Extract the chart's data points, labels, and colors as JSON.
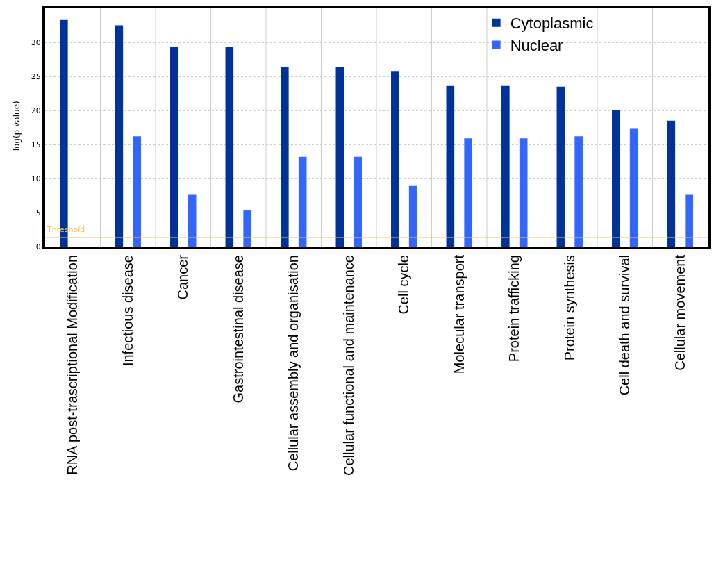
{
  "chart_data": {
    "type": "bar",
    "ylabel": "-log(p-value)",
    "categories": [
      "RNA post-trascriptional Modification",
      "Infectious disease",
      "Cancer",
      "Gastrointestinal disease",
      "Cellular assembly and organisation",
      "Cellular functional and maintenance",
      "Cell cycle",
      "Molecular transport",
      "Protein trafficking",
      "Protein synthesis",
      "Cell death and survival",
      "Cellular movement"
    ],
    "series": [
      {
        "name": "Cytoplasmic",
        "color": "#003399",
        "values": [
          33.3,
          32.5,
          29.4,
          29.4,
          26.4,
          26.4,
          25.8,
          23.6,
          23.6,
          23.5,
          20.1,
          18.5
        ]
      },
      {
        "name": "Nuclear",
        "color": "#3366ff",
        "values": [
          null,
          16.2,
          7.6,
          5.3,
          13.2,
          13.2,
          8.9,
          15.9,
          15.9,
          16.2,
          17.3,
          7.6
        ]
      }
    ],
    "ylim": [
      0,
      35
    ],
    "yticks": [
      0,
      5,
      10,
      15,
      20,
      25,
      30
    ],
    "ref_lines": [
      {
        "axis": "y",
        "value": 1.3,
        "label": "Threshold",
        "color": "#ffbb55"
      }
    ],
    "grid": true,
    "legend": "top"
  }
}
